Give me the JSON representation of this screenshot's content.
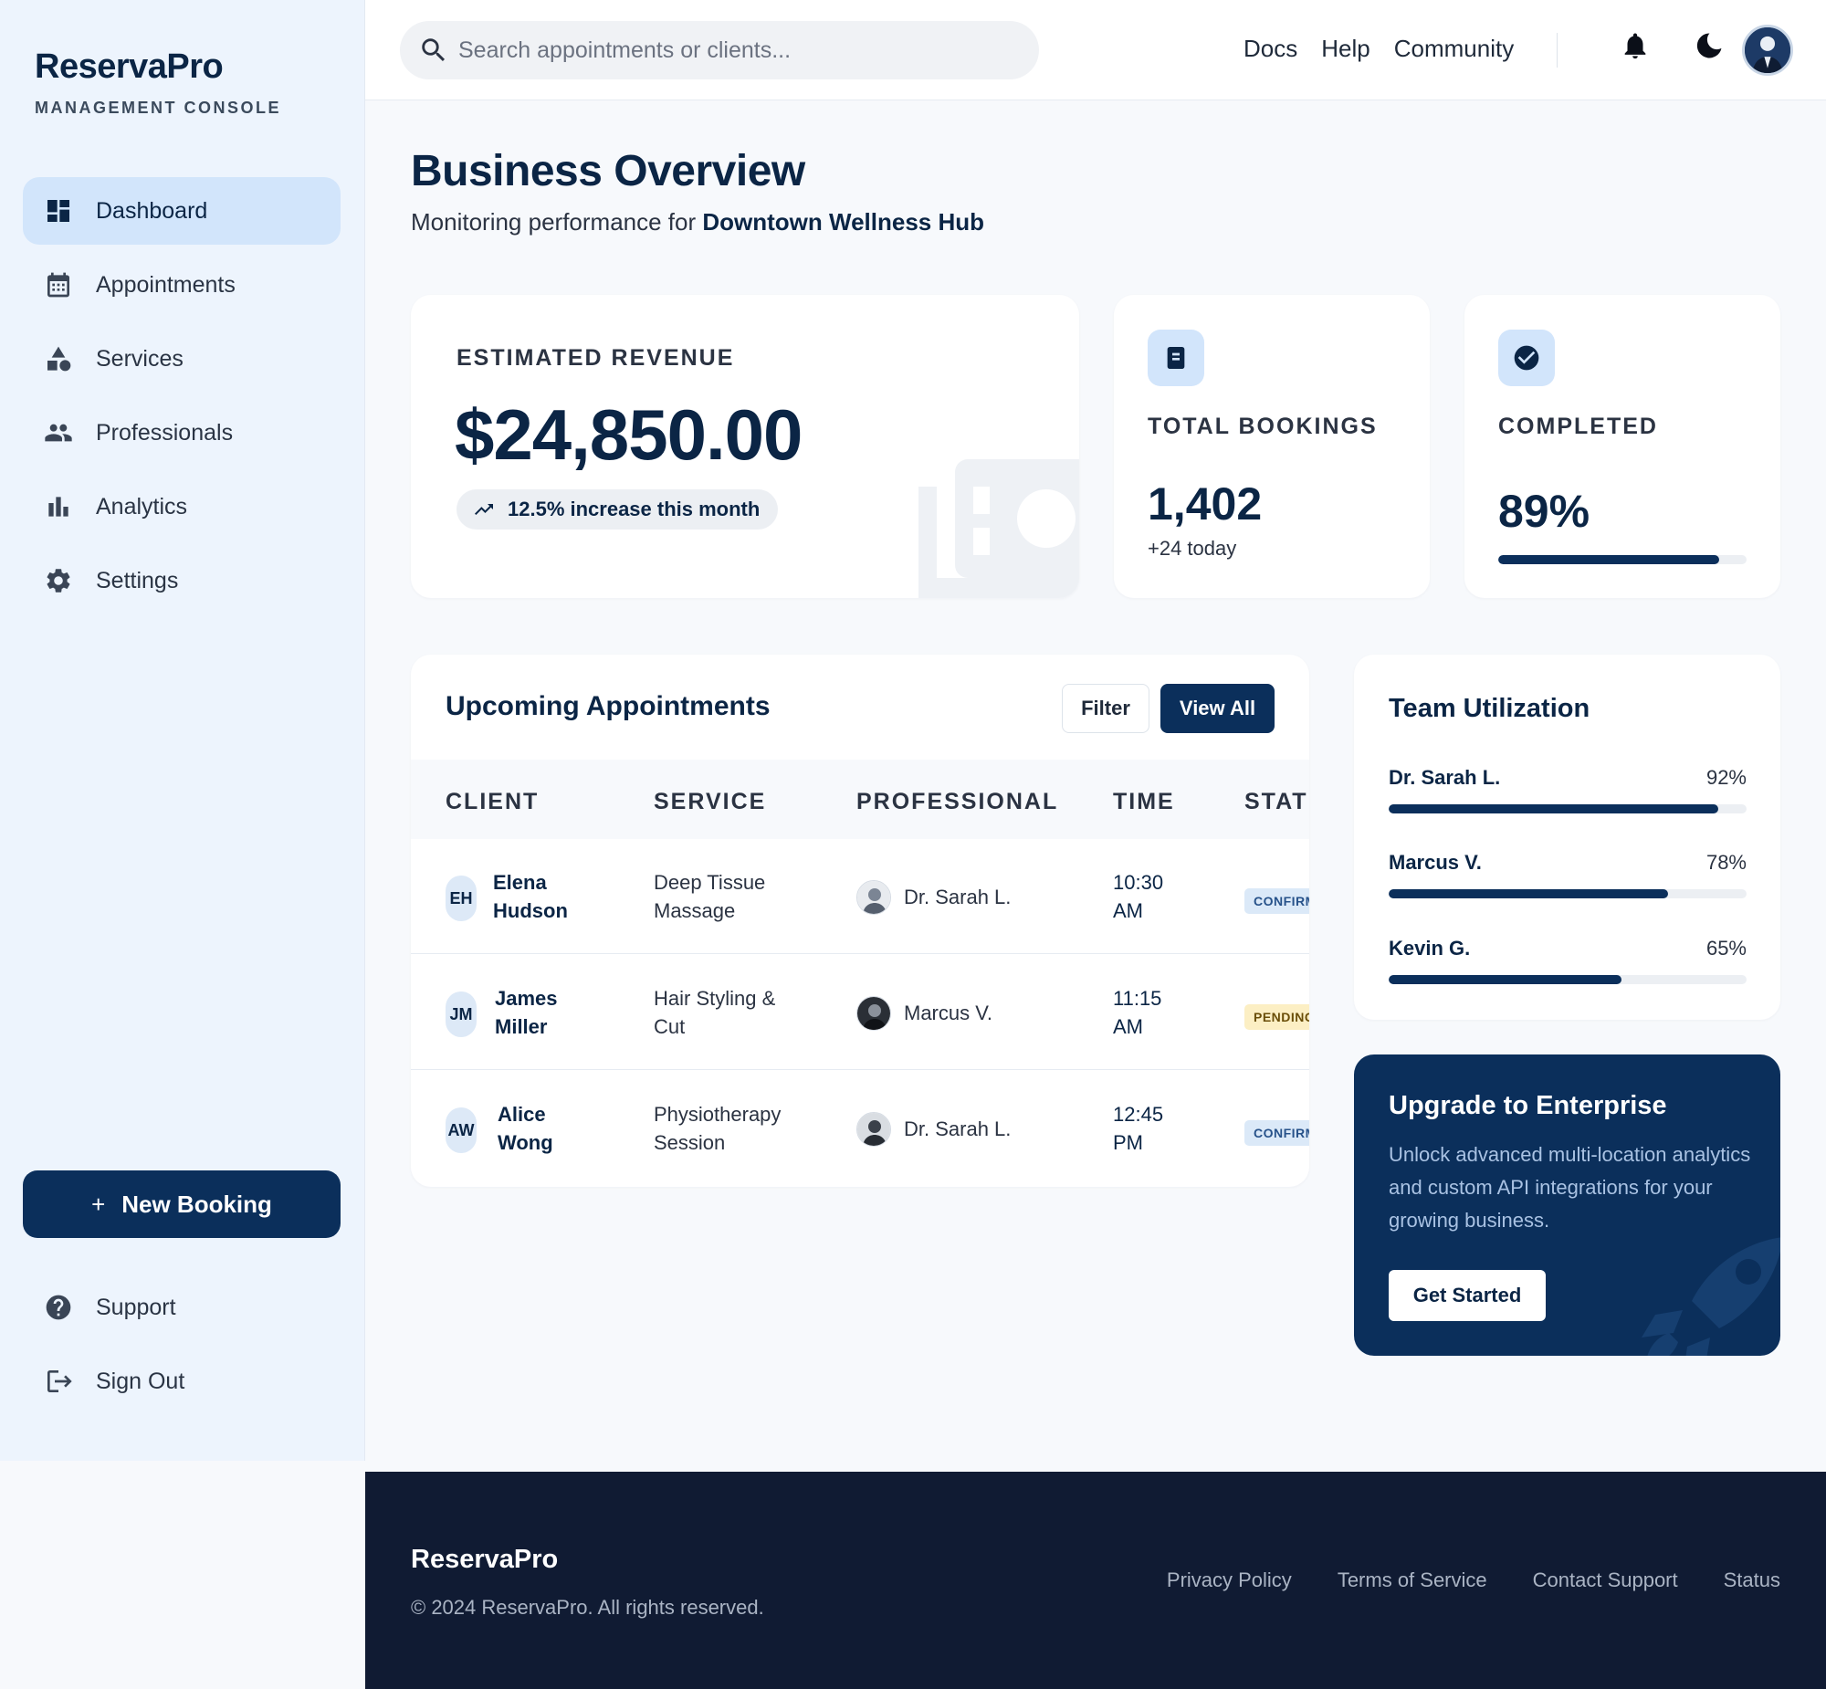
{
  "sidebar": {
    "brand": "ReservaPro",
    "subtitle": "MANAGEMENT CONSOLE",
    "items": [
      {
        "label": "Dashboard",
        "icon": "dashboard-icon",
        "active": true
      },
      {
        "label": "Appointments",
        "icon": "calendar-icon"
      },
      {
        "label": "Services",
        "icon": "category-icon"
      },
      {
        "label": "Professionals",
        "icon": "group-icon"
      },
      {
        "label": "Analytics",
        "icon": "bar-chart-icon"
      },
      {
        "label": "Settings",
        "icon": "gear-icon"
      }
    ],
    "new_booking_label": "New Booking",
    "bottom_items": [
      {
        "label": "Support",
        "icon": "help-circle-icon"
      },
      {
        "label": "Sign Out",
        "icon": "logout-icon"
      }
    ]
  },
  "topbar": {
    "search_placeholder": "Search appointments or clients...",
    "links": [
      "Docs",
      "Help",
      "Community"
    ],
    "icons": [
      "bell-icon",
      "moon-icon",
      "avatar"
    ]
  },
  "overview": {
    "title": "Business Overview",
    "subtitle_prefix": "Monitoring performance for ",
    "business_name": "Downtown Wellness Hub"
  },
  "revenue": {
    "label": "ESTIMATED REVENUE",
    "value": "$24,850.00",
    "trend": "12.5% increase this month"
  },
  "bookings": {
    "label": "TOTAL BOOKINGS",
    "value": "1,402",
    "sub": "+24 today"
  },
  "completed": {
    "label": "COMPLETED",
    "value": "89%",
    "progress": 0.89
  },
  "appointments": {
    "title": "Upcoming Appointments",
    "filter_label": "Filter",
    "view_all_label": "View All",
    "columns": [
      "CLIENT",
      "SERVICE",
      "PROFESSIONAL",
      "TIME",
      "STATUS"
    ],
    "rows": [
      {
        "initials": "EH",
        "client": "Elena Hudson",
        "service": "Deep Tissue Massage",
        "professional": "Dr. Sarah L.",
        "time": "10:30 AM",
        "status": "CONFIRMED",
        "status_type": "confirmed"
      },
      {
        "initials": "JM",
        "client": "James Miller",
        "service": "Hair Styling & Cut",
        "professional": "Marcus V.",
        "time": "11:15 AM",
        "status": "PENDING",
        "status_type": "pending"
      },
      {
        "initials": "AW",
        "client": "Alice Wong",
        "service": "Physiotherapy Session",
        "professional": "Dr. Sarah L.",
        "time": "12:45 PM",
        "status": "CONFIRMED",
        "status_type": "confirmed"
      }
    ]
  },
  "team": {
    "title": "Team Utilization",
    "members": [
      {
        "name": "Dr. Sarah L.",
        "pct_label": "92%",
        "value": 0.92
      },
      {
        "name": "Marcus V.",
        "pct_label": "78%",
        "value": 0.78
      },
      {
        "name": "Kevin G.",
        "pct_label": "65%",
        "value": 0.65
      }
    ]
  },
  "upgrade": {
    "title": "Upgrade to Enterprise",
    "description": "Unlock advanced multi-location analytics and custom API integrations for your growing business.",
    "button": "Get Started"
  },
  "footer": {
    "brand": "ReservaPro",
    "copyright": "© 2024 ReservaPro. All rights reserved.",
    "links": [
      "Privacy Policy",
      "Terms of Service",
      "Contact Support",
      "Status"
    ]
  },
  "colors": {
    "primary": "#0b2f5b",
    "sidebar_bg": "#edf4fd",
    "active_nav": "#d2e5fb",
    "footer_bg": "#101b33",
    "pending": "#fcefc4",
    "confirmed": "#dbe9f8"
  }
}
